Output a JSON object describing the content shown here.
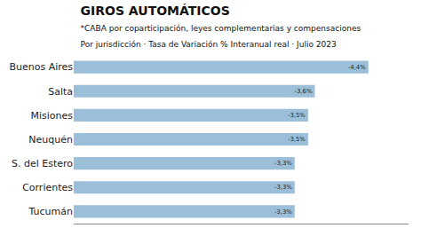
{
  "chart_data": {
    "type": "bar",
    "orientation": "horizontal",
    "title": "GIROS AUTOMÁTICOS",
    "subtitle": [
      "*CABA por coparticipación, leyes complementarias y compensaciones",
      "Por jurisdicción · Tasa de Variación % Interanual real · Julio 2023"
    ],
    "categories": [
      "Buenos Aires",
      "Salta",
      "Misiones",
      "Neuquén",
      "S. del Estero",
      "Corrientes",
      "Tucumán"
    ],
    "values": [
      -4.4,
      -3.6,
      -3.5,
      -3.5,
      -3.3,
      -3.3,
      -3.3
    ],
    "value_labels": [
      "-4,4%",
      "-3,6%",
      "-3,5%",
      "-3,5%",
      "-3,3%",
      "-3,3%",
      "-3,3%"
    ],
    "color": "#9bbfd9",
    "xlim": [
      0,
      -5
    ],
    "xticks": [],
    "grid": false,
    "data_labels": true,
    "tick_labels": "y"
  }
}
